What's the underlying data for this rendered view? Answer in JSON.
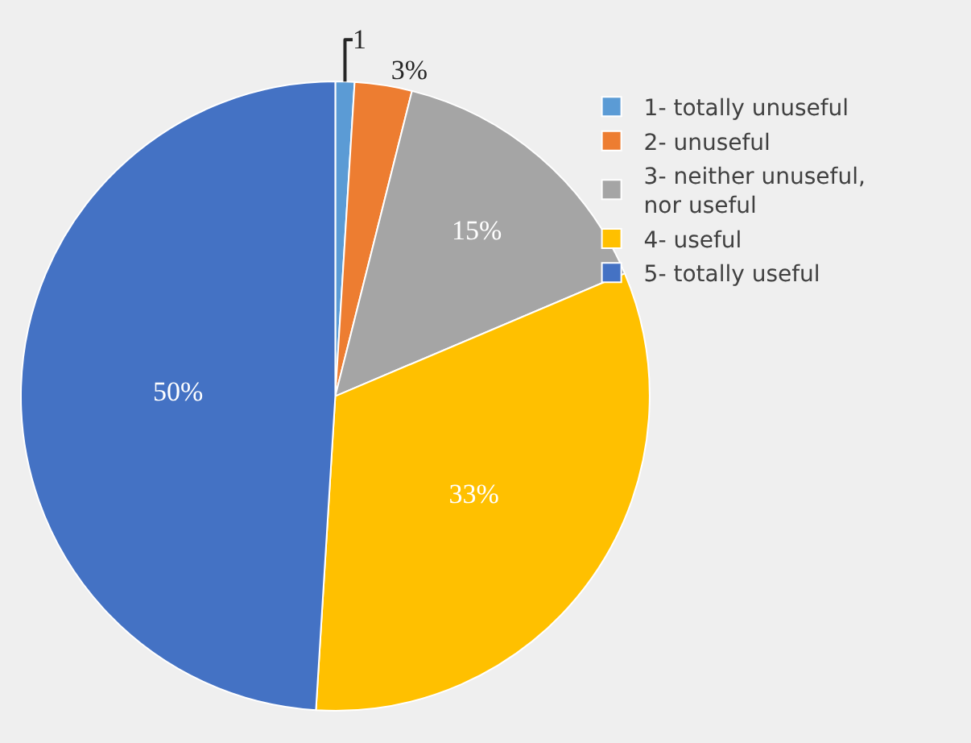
{
  "chart_data": {
    "type": "pie",
    "categories": [
      "1- totally unuseful",
      "2- unuseful",
      "3- neither unuseful, nor useful",
      "4- useful",
      "5- totally useful"
    ],
    "values": [
      1,
      3,
      15,
      33,
      50
    ],
    "value_labels": [
      "1",
      "3%",
      "15%",
      "33%",
      "50%"
    ],
    "colors": [
      "#5b9bd5",
      "#ed7d31",
      "#a5a5a5",
      "#ffc000",
      "#4472c4"
    ],
    "legend": "top right"
  }
}
